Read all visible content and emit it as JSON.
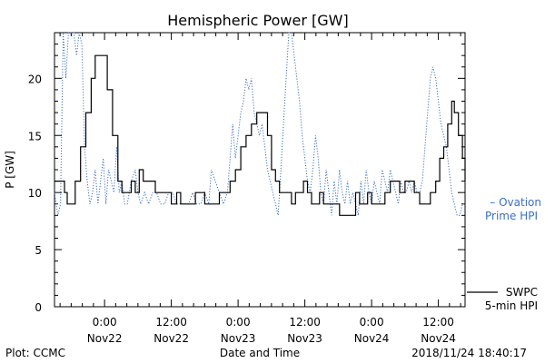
{
  "chart_data": {
    "type": "line",
    "title": "Hemispheric Power [GW]",
    "xlabel": "Date and Time",
    "ylabel": "P [GW]",
    "ylim": [
      0,
      24
    ],
    "xlim": [
      -0.375,
      2.7
    ],
    "y_ticks": [
      0,
      5,
      10,
      15,
      20
    ],
    "x_ticks": [
      {
        "x": 0.0,
        "line1": "0:00",
        "line2": "Nov22"
      },
      {
        "x": 0.5,
        "line1": "12:00",
        "line2": "Nov22"
      },
      {
        "x": 1.0,
        "line1": "0:00",
        "line2": "Nov23"
      },
      {
        "x": 1.5,
        "line1": "12:00",
        "line2": "Nov23"
      },
      {
        "x": 2.0,
        "line1": "0:00",
        "line2": "Nov24"
      },
      {
        "x": 2.5,
        "line1": "12:00",
        "line2": "Nov24"
      }
    ],
    "grid": false,
    "legend_position": "right",
    "series": [
      {
        "name_lines": [
          "SWPC",
          "5-min HPI"
        ],
        "legend_prefix": "",
        "color": "#000000",
        "style": "solid",
        "points": [
          [
            -0.375,
            11
          ],
          [
            -0.34,
            11
          ],
          [
            -0.3,
            10
          ],
          [
            -0.28,
            9
          ],
          [
            -0.24,
            9
          ],
          [
            -0.22,
            11
          ],
          [
            -0.18,
            14
          ],
          [
            -0.14,
            17
          ],
          [
            -0.1,
            20
          ],
          [
            -0.07,
            22
          ],
          [
            -0.02,
            22
          ],
          [
            0.02,
            19
          ],
          [
            0.06,
            15
          ],
          [
            0.1,
            11
          ],
          [
            0.13,
            10
          ],
          [
            0.16,
            10
          ],
          [
            0.2,
            11
          ],
          [
            0.23,
            10
          ],
          [
            0.26,
            12
          ],
          [
            0.29,
            11
          ],
          [
            0.33,
            11
          ],
          [
            0.38,
            10
          ],
          [
            0.42,
            10
          ],
          [
            0.46,
            10
          ],
          [
            0.5,
            9
          ],
          [
            0.54,
            10
          ],
          [
            0.57,
            9
          ],
          [
            0.6,
            9
          ],
          [
            0.64,
            9
          ],
          [
            0.68,
            10
          ],
          [
            0.72,
            10
          ],
          [
            0.75,
            9
          ],
          [
            0.79,
            9
          ],
          [
            0.82,
            9
          ],
          [
            0.86,
            10
          ],
          [
            0.9,
            10
          ],
          [
            0.94,
            11
          ],
          [
            0.98,
            12
          ],
          [
            1.02,
            14
          ],
          [
            1.06,
            15
          ],
          [
            1.1,
            16
          ],
          [
            1.14,
            17
          ],
          [
            1.18,
            17
          ],
          [
            1.22,
            15
          ],
          [
            1.25,
            12
          ],
          [
            1.28,
            11
          ],
          [
            1.31,
            10
          ],
          [
            1.34,
            10
          ],
          [
            1.37,
            10
          ],
          [
            1.4,
            9
          ],
          [
            1.43,
            10
          ],
          [
            1.46,
            10
          ],
          [
            1.49,
            11
          ],
          [
            1.52,
            10
          ],
          [
            1.55,
            9
          ],
          [
            1.58,
            9
          ],
          [
            1.61,
            10
          ],
          [
            1.64,
            9
          ],
          [
            1.67,
            9
          ],
          [
            1.7,
            9
          ],
          [
            1.73,
            9
          ],
          [
            1.76,
            8
          ],
          [
            1.8,
            8
          ],
          [
            1.84,
            8
          ],
          [
            1.88,
            10
          ],
          [
            1.91,
            9
          ],
          [
            1.94,
            9
          ],
          [
            1.97,
            10
          ],
          [
            2.0,
            9
          ],
          [
            2.03,
            9
          ],
          [
            2.07,
            9
          ],
          [
            2.1,
            10
          ],
          [
            2.14,
            11
          ],
          [
            2.18,
            11
          ],
          [
            2.21,
            10
          ],
          [
            2.25,
            11
          ],
          [
            2.28,
            11
          ],
          [
            2.32,
            10
          ],
          [
            2.36,
            9
          ],
          [
            2.4,
            9
          ],
          [
            2.44,
            10
          ],
          [
            2.48,
            11
          ],
          [
            2.51,
            13
          ],
          [
            2.54,
            14
          ],
          [
            2.57,
            16
          ],
          [
            2.6,
            18
          ],
          [
            2.62,
            17
          ],
          [
            2.65,
            15
          ],
          [
            2.68,
            13
          ],
          [
            2.7,
            11
          ]
        ]
      },
      {
        "name_lines": [
          "Ovation",
          "Prime HPI"
        ],
        "legend_prefix": "–",
        "color": "#3a6fc4",
        "style": "dotted",
        "points": [
          [
            -0.375,
            10
          ],
          [
            -0.35,
            8
          ],
          [
            -0.33,
            9
          ],
          [
            -0.31,
            24
          ],
          [
            -0.29,
            20
          ],
          [
            -0.27,
            24
          ],
          [
            -0.25,
            24
          ],
          [
            -0.23,
            24
          ],
          [
            -0.21,
            22
          ],
          [
            -0.19,
            24
          ],
          [
            -0.17,
            23
          ],
          [
            -0.15,
            14
          ],
          [
            -0.13,
            11
          ],
          [
            -0.11,
            9
          ],
          [
            -0.09,
            10
          ],
          [
            -0.07,
            12
          ],
          [
            -0.05,
            9
          ],
          [
            -0.03,
            11
          ],
          [
            -0.01,
            13
          ],
          [
            0.01,
            9
          ],
          [
            0.03,
            12
          ],
          [
            0.05,
            11
          ],
          [
            0.07,
            10
          ],
          [
            0.09,
            14
          ],
          [
            0.11,
            10
          ],
          [
            0.13,
            11
          ],
          [
            0.15,
            9
          ],
          [
            0.17,
            9
          ],
          [
            0.2,
            11
          ],
          [
            0.23,
            12
          ],
          [
            0.25,
            10
          ],
          [
            0.27,
            9
          ],
          [
            0.3,
            10
          ],
          [
            0.33,
            9
          ],
          [
            0.36,
            10
          ],
          [
            0.39,
            10
          ],
          [
            0.42,
            9
          ],
          [
            0.45,
            9
          ],
          [
            0.48,
            10
          ],
          [
            0.51,
            10
          ],
          [
            0.54,
            9
          ],
          [
            0.57,
            9
          ],
          [
            0.6,
            9
          ],
          [
            0.63,
            9
          ],
          [
            0.66,
            10
          ],
          [
            0.69,
            9
          ],
          [
            0.72,
            9
          ],
          [
            0.75,
            10
          ],
          [
            0.78,
            9
          ],
          [
            0.8,
            12
          ],
          [
            0.83,
            11
          ],
          [
            0.86,
            10
          ],
          [
            0.89,
            9
          ],
          [
            0.92,
            10
          ],
          [
            0.94,
            13
          ],
          [
            0.96,
            16
          ],
          [
            0.98,
            13
          ],
          [
            1.0,
            15
          ],
          [
            1.02,
            17
          ],
          [
            1.04,
            18
          ],
          [
            1.06,
            20
          ],
          [
            1.08,
            19
          ],
          [
            1.1,
            20
          ],
          [
            1.12,
            17
          ],
          [
            1.14,
            16
          ],
          [
            1.16,
            15
          ],
          [
            1.18,
            16
          ],
          [
            1.2,
            14
          ],
          [
            1.22,
            12
          ],
          [
            1.24,
            11
          ],
          [
            1.26,
            10
          ],
          [
            1.28,
            9
          ],
          [
            1.3,
            8
          ],
          [
            1.32,
            12
          ],
          [
            1.34,
            16
          ],
          [
            1.36,
            20
          ],
          [
            1.38,
            24
          ],
          [
            1.4,
            24
          ],
          [
            1.42,
            22
          ],
          [
            1.44,
            20
          ],
          [
            1.46,
            18
          ],
          [
            1.48,
            15
          ],
          [
            1.5,
            13
          ],
          [
            1.52,
            11
          ],
          [
            1.54,
            10
          ],
          [
            1.56,
            12
          ],
          [
            1.58,
            15
          ],
          [
            1.6,
            13
          ],
          [
            1.62,
            10
          ],
          [
            1.64,
            9
          ],
          [
            1.66,
            12
          ],
          [
            1.68,
            10
          ],
          [
            1.7,
            8
          ],
          [
            1.72,
            11
          ],
          [
            1.74,
            9
          ],
          [
            1.76,
            12
          ],
          [
            1.78,
            10
          ],
          [
            1.8,
            9
          ],
          [
            1.82,
            11
          ],
          [
            1.84,
            9
          ],
          [
            1.86,
            10
          ],
          [
            1.88,
            9
          ],
          [
            1.9,
            8
          ],
          [
            1.92,
            11
          ],
          [
            1.94,
            9
          ],
          [
            1.96,
            12
          ],
          [
            1.98,
            10
          ],
          [
            2.0,
            9
          ],
          [
            2.02,
            11
          ],
          [
            2.04,
            10
          ],
          [
            2.06,
            9
          ],
          [
            2.08,
            12
          ],
          [
            2.1,
            11
          ],
          [
            2.12,
            10
          ],
          [
            2.14,
            12
          ],
          [
            2.16,
            11
          ],
          [
            2.18,
            10
          ],
          [
            2.2,
            9
          ],
          [
            2.22,
            11
          ],
          [
            2.24,
            10
          ],
          [
            2.26,
            10
          ],
          [
            2.28,
            11
          ],
          [
            2.3,
            10
          ],
          [
            2.32,
            11
          ],
          [
            2.34,
            10
          ],
          [
            2.36,
            10
          ],
          [
            2.38,
            11
          ],
          [
            2.4,
            14
          ],
          [
            2.42,
            17
          ],
          [
            2.44,
            20
          ],
          [
            2.46,
            21
          ],
          [
            2.48,
            20
          ],
          [
            2.5,
            18
          ],
          [
            2.52,
            16
          ],
          [
            2.54,
            15
          ],
          [
            2.56,
            14
          ],
          [
            2.58,
            12
          ],
          [
            2.6,
            10
          ],
          [
            2.62,
            9
          ],
          [
            2.64,
            8
          ],
          [
            2.66,
            8
          ],
          [
            2.68,
            9
          ],
          [
            2.7,
            9
          ]
        ]
      }
    ]
  },
  "footer": {
    "left": "Plot: CCMC",
    "right": "2018/11/24 18:40:17"
  }
}
